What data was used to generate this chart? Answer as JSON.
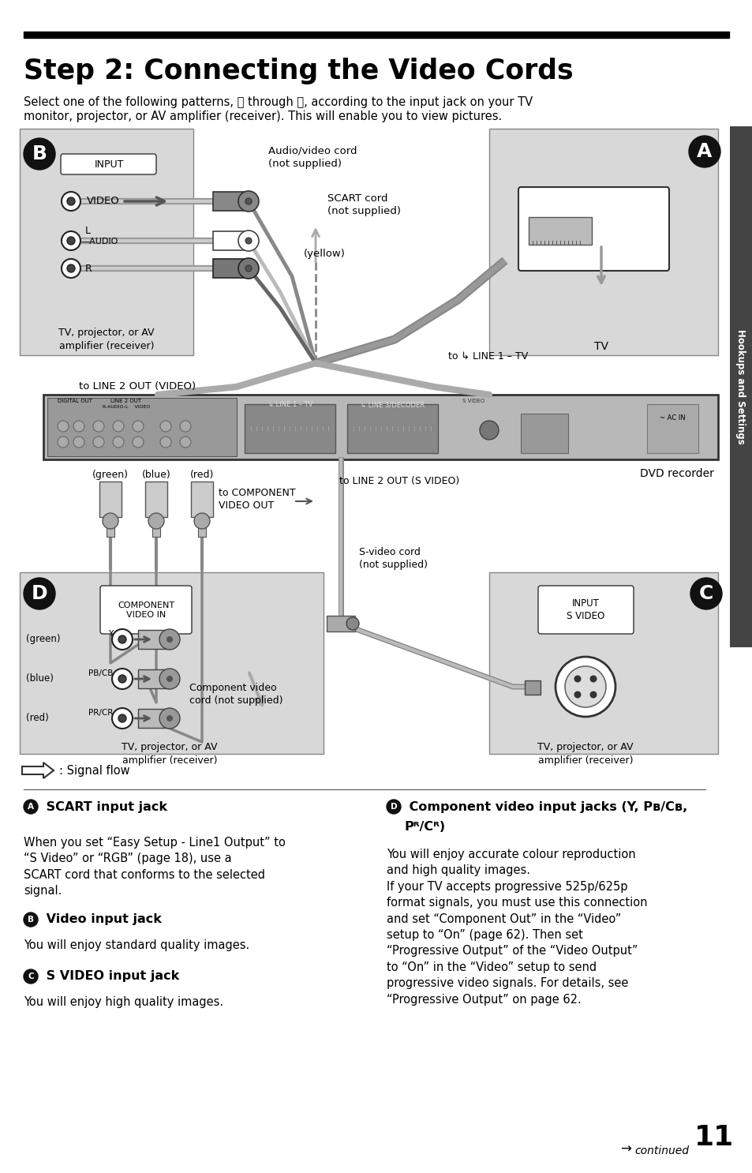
{
  "title": "Step 2: Connecting the Video Cords",
  "bg_color": "#ffffff",
  "sidebar_text": "Hookups and Settings",
  "intro_text1": "Select one of the following patterns, ",
  "circled_A": "Ⓐ",
  "intro_through": " through ",
  "circled_D": "Ⓓ",
  "intro_text2": ", according to the input jack on your TV",
  "intro_line2": "monitor, projector, or AV amplifier (receiver). This will enable you to view pictures.",
  "signal_flow_text": ": Signal flow",
  "section_a_head": "SCART input jack",
  "section_a_body": "When you set “Easy Setup - Line1 Output” to\n“S Video” or “RGB” (page 18), use a\nSCART cord that conforms to the selected\nsignal.",
  "section_b_head": "Video input jack",
  "section_b_body": "You will enjoy standard quality images.",
  "section_c_head": "S VIDEO input jack",
  "section_c_body": "You will enjoy high quality images.",
  "section_d_head1": "Component video input jacks (Y, P",
  "section_d_head1b": "B",
  "section_d_head1c": "/C",
  "section_d_head1d": "B",
  "section_d_head2": "P",
  "section_d_head2b": "R",
  "section_d_head2c": "/C",
  "section_d_head2d": "R",
  "section_d_head2e": ")",
  "section_d_body": "You will enjoy accurate colour reproduction\nand high quality images.\nIf your TV accepts progressive 525p/625p\nformat signals, you must use this connection\nand set “Component Out” in the “Video”\nsetup to “On” (page 62). Then set\n“Progressive Output” of the “Video Output”\nto “On” in the “Video” setup to send\nprogressive video signals. For details, see\n“Progressive Output” on page 62.",
  "diagram_gray": "#d5d5d5",
  "diagram_dark": "#aaaaaa",
  "diagram_mid": "#bbbbbb",
  "page_num": "11"
}
